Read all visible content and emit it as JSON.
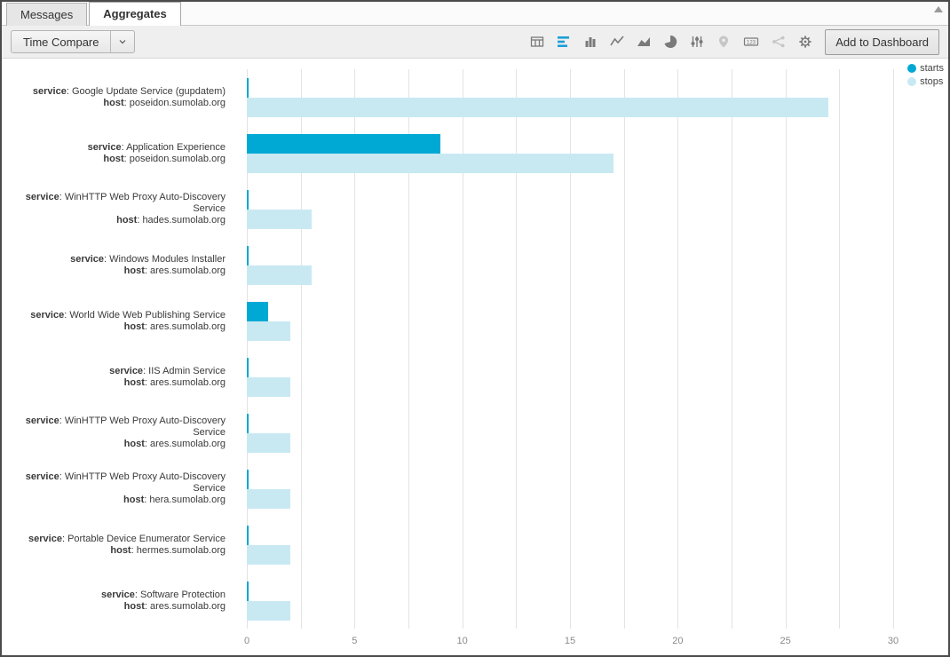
{
  "tabs": [
    {
      "label": "Messages",
      "active": false
    },
    {
      "label": "Aggregates",
      "active": true
    }
  ],
  "toolbar": {
    "time_compare_label": "Time Compare",
    "add_to_dashboard_label": "Add to Dashboard",
    "icons": [
      {
        "name": "table-icon",
        "state": "normal"
      },
      {
        "name": "bar-chart-horizontal-icon",
        "state": "active"
      },
      {
        "name": "bar-chart-vertical-icon",
        "state": "normal"
      },
      {
        "name": "line-chart-icon",
        "state": "normal"
      },
      {
        "name": "area-chart-icon",
        "state": "normal"
      },
      {
        "name": "pie-chart-icon",
        "state": "normal"
      },
      {
        "name": "sliders-icon",
        "state": "normal"
      },
      {
        "name": "map-pin-icon",
        "state": "dim"
      },
      {
        "name": "number-display-icon",
        "state": "normal"
      },
      {
        "name": "node-graph-icon",
        "state": "dim"
      },
      {
        "name": "gear-icon",
        "state": "normal"
      }
    ]
  },
  "legend": [
    {
      "label": "starts",
      "color": "#00A9D4"
    },
    {
      "label": "stops",
      "color": "#C8E9F2"
    }
  ],
  "colors": {
    "starts": "#00A9D4",
    "stops": "#C8E9F2",
    "accent": "#1B9FD8"
  },
  "chart_data": {
    "type": "bar",
    "orientation": "horizontal",
    "categories": [
      {
        "service": "Google Update Service (gupdatem)",
        "host": "poseidon.sumolab.org"
      },
      {
        "service": "Application Experience",
        "host": "poseidon.sumolab.org"
      },
      {
        "service": "WinHTTP Web Proxy Auto-Discovery Service",
        "host": "hades.sumolab.org"
      },
      {
        "service": "Windows Modules Installer",
        "host": "ares.sumolab.org"
      },
      {
        "service": "World Wide Web Publishing Service",
        "host": "ares.sumolab.org"
      },
      {
        "service": "IIS Admin Service",
        "host": "ares.sumolab.org"
      },
      {
        "service": "WinHTTP Web Proxy Auto-Discovery Service",
        "host": "ares.sumolab.org"
      },
      {
        "service": "WinHTTP Web Proxy Auto-Discovery Service",
        "host": "hera.sumolab.org"
      },
      {
        "service": "Portable Device Enumerator Service",
        "host": "hermes.sumolab.org"
      },
      {
        "service": "Software Protection",
        "host": "ares.sumolab.org"
      }
    ],
    "series": [
      {
        "name": "starts",
        "color": "#00A9D4",
        "values": [
          0.1,
          9,
          0.1,
          0.1,
          1,
          0.1,
          0.1,
          0.1,
          0.1,
          0.1
        ]
      },
      {
        "name": "stops",
        "color": "#C8E9F2",
        "values": [
          27,
          17,
          3,
          3,
          2,
          2,
          2,
          2,
          2,
          2
        ]
      }
    ],
    "xlim": [
      0,
      30
    ],
    "xticks": [
      0,
      5,
      10,
      15,
      20,
      25,
      30
    ],
    "minor_grid_step": 2.5,
    "grid": true,
    "legend_position": "top-right",
    "title": "",
    "xlabel": "",
    "ylabel": ""
  }
}
